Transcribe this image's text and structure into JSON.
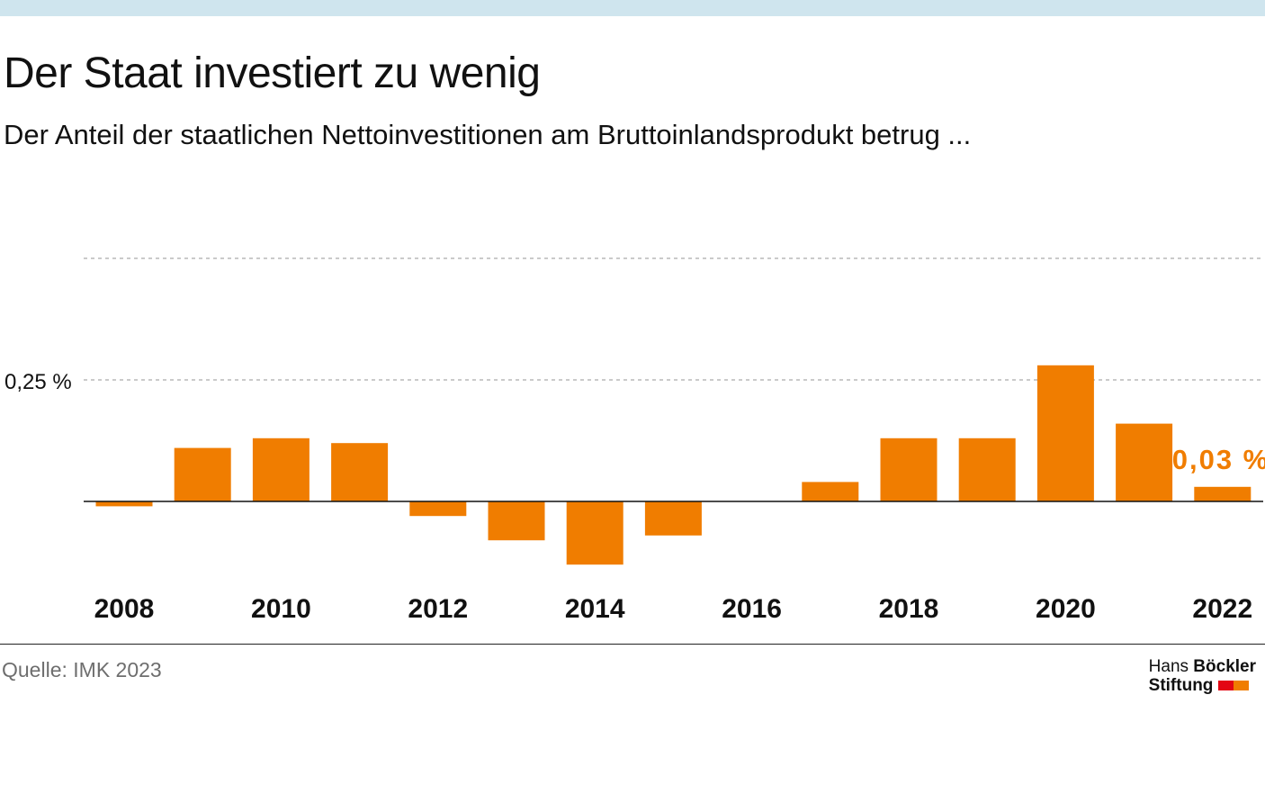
{
  "title": "Der Staat investiert zu wenig",
  "subtitle": "Der Anteil der staatlichen Nettoinvestitionen am Bruttoinlandsprodukt betrug ...",
  "source": "Quelle: IMK 2023",
  "logo": {
    "word1": "Hans",
    "word2": "Böckler",
    "word3": "Stiftung",
    "colors": [
      "#e30613",
      "#f07d00"
    ]
  },
  "colors": {
    "bar": "#f07d00",
    "highlight_label": "#f07d00",
    "top_band": "#cfe5ee",
    "grid": "#aaaaaa",
    "axis": "#111111"
  },
  "chart_data": {
    "type": "bar",
    "x": [
      2008,
      2009,
      2010,
      2011,
      2012,
      2013,
      2014,
      2015,
      2016,
      2017,
      2018,
      2019,
      2020,
      2021,
      2022
    ],
    "values": [
      -0.01,
      0.11,
      0.13,
      0.12,
      -0.03,
      -0.08,
      -0.13,
      -0.07,
      0.0,
      0.04,
      0.13,
      0.13,
      0.28,
      0.16,
      0.03
    ],
    "x_tick_labels": [
      "2008",
      "2010",
      "2012",
      "2014",
      "2016",
      "2018",
      "2020",
      "2022"
    ],
    "y_tick_label": "0,25 %",
    "y_ticks": [
      0.25,
      0.5
    ],
    "grid": "dashed horizontal",
    "annotation": {
      "label": "0,03 %",
      "x": 2022
    },
    "xlabel": "",
    "ylabel": ""
  }
}
